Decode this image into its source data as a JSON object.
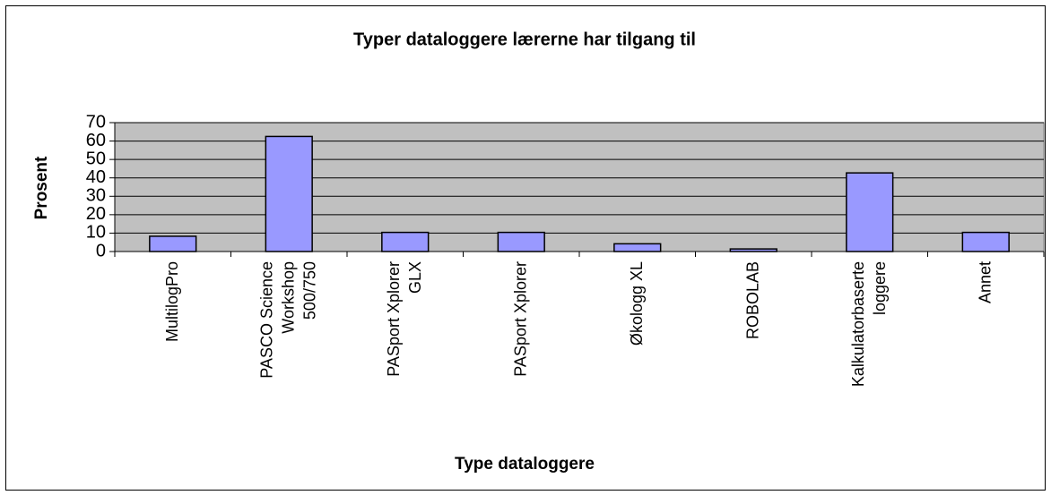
{
  "chart_data": {
    "type": "bar",
    "title": "Typer dataloggere lærerne har tilgang til",
    "x_label": "Type dataloggere",
    "y_label": "Prosent",
    "categories": [
      "MultilogPro",
      "PASCO Science\nWorkshop\n500/750",
      "PASport Xplorer\nGLX",
      "PASport Xplorer",
      "Økologg XL",
      "ROBOLAB",
      "Kalkulatorbaserte\nloggere",
      "Annet"
    ],
    "values": [
      8.3,
      62.5,
      10.4,
      10.4,
      4.2,
      1.4,
      42.7,
      10.4
    ],
    "color": "#9999ff",
    "ylim": [
      0,
      70
    ],
    "yticks": [
      0,
      10,
      20,
      30,
      40,
      50,
      60,
      70
    ],
    "grid": true
  }
}
